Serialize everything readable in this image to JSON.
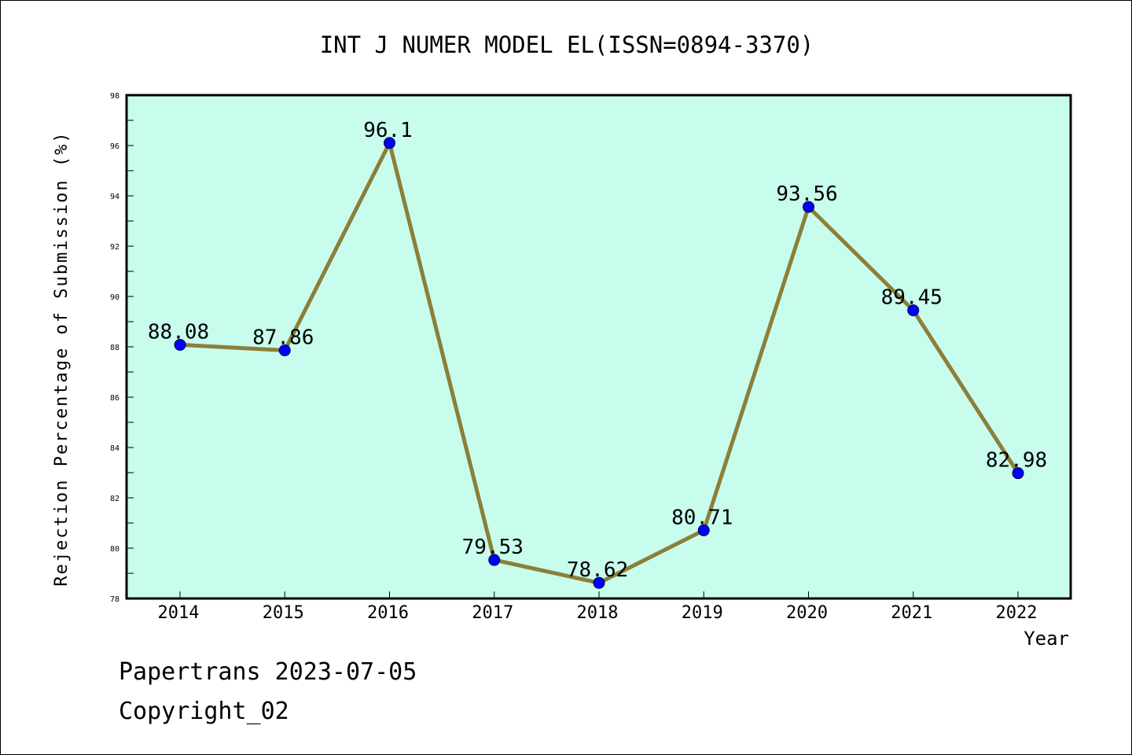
{
  "chart_data": {
    "type": "line",
    "title": "INT J NUMER MODEL EL(ISSN=0894-3370)",
    "xlabel": "Year",
    "ylabel": "Rejection Percentage of Submission (%)",
    "categories": [
      "2014",
      "2015",
      "2016",
      "2017",
      "2018",
      "2019",
      "2020",
      "2021",
      "2022"
    ],
    "values": [
      88.08,
      87.86,
      96.1,
      79.53,
      78.62,
      80.71,
      93.56,
      89.45,
      82.98
    ],
    "data_labels": [
      "88.08",
      "87.86",
      "96.1",
      "79.53",
      "78.62",
      "80.71",
      "93.56",
      "89.45",
      "82.98"
    ],
    "ylim": [
      78,
      98
    ],
    "yticks": [
      "78",
      "80",
      "82",
      "84",
      "86",
      "88",
      "90",
      "92",
      "94",
      "96",
      "98"
    ],
    "grid": false,
    "colors": {
      "plot_background": "#c8fdee",
      "line": "#8b7f3a",
      "marker": "#0000ff"
    }
  },
  "footer": {
    "line1": "Papertrans 2023-07-05",
    "line2": "Copyright_02"
  }
}
